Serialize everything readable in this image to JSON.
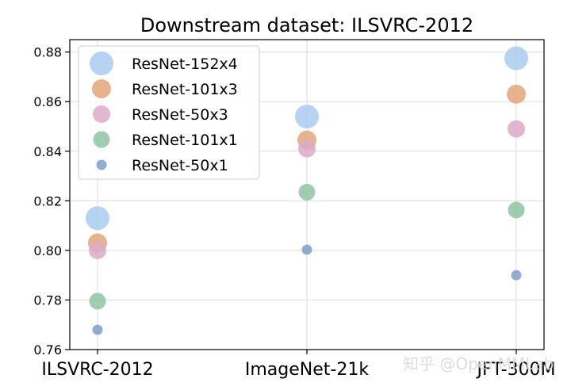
{
  "chart_data": {
    "type": "scatter",
    "title": "Downstream dataset: ILSVRC-2012",
    "xlabel": "",
    "ylabel": "",
    "categories": [
      "ILSVRC-2012",
      "ImageNet-21k",
      "JFT-300M"
    ],
    "ylim": [
      0.76,
      0.885
    ],
    "yticks": [
      "0.76",
      "0.78",
      "0.80",
      "0.82",
      "0.84",
      "0.86",
      "0.88"
    ],
    "grid": true,
    "legend_position": "top-left",
    "series": [
      {
        "name": "ResNet-152x4",
        "color": "#a9cdee",
        "values": [
          0.813,
          0.854,
          0.8775
        ]
      },
      {
        "name": "ResNet-101x3",
        "color": "#e3a57a",
        "values": [
          0.803,
          0.8445,
          0.863
        ]
      },
      {
        "name": "ResNet-50x3",
        "color": "#dcaac8",
        "values": [
          0.8,
          0.841,
          0.849
        ]
      },
      {
        "name": "ResNet-101x1",
        "color": "#8fc4a5",
        "values": [
          0.7795,
          0.8235,
          0.8163
        ]
      },
      {
        "name": "ResNet-50x1",
        "color": "#7f9fcb",
        "values": [
          0.768,
          0.8003,
          0.79
        ]
      }
    ]
  },
  "watermark": "知乎 @OpenMMLab"
}
